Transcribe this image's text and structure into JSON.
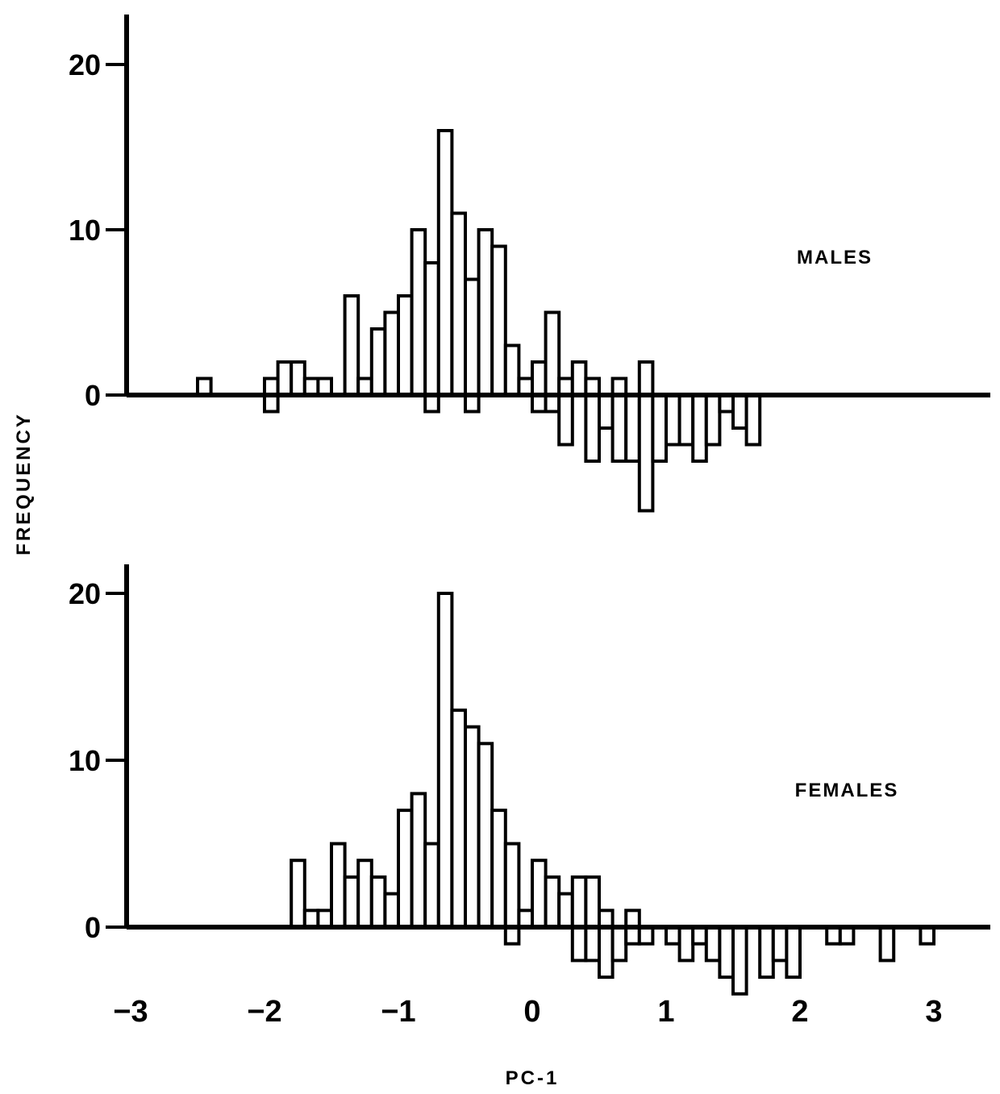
{
  "chart_data": {
    "type": "histogram",
    "ylabel": "FREQUENCY",
    "xlabel": "PC-1",
    "xlim": [
      -3,
      3.4
    ],
    "x_ticks": [
      "−3",
      "−2",
      "−1",
      "0",
      "1",
      "2",
      "3"
    ],
    "x_tick_values": [
      -3,
      -2,
      -1,
      0,
      1,
      2,
      3
    ],
    "bin_width": 0.1,
    "grid": false,
    "panels": [
      {
        "label": "MALES",
        "y_ticks": [
          "0",
          "10",
          "20"
        ],
        "y_tick_values": [
          0,
          10,
          20
        ],
        "ylim": [
          -7,
          23
        ],
        "above_bins": [
          {
            "x": -2.45,
            "codes": [
              "11"
            ]
          },
          {
            "x": -1.95,
            "codes": [
              "12"
            ]
          },
          {
            "x": -1.85,
            "codes": [
              "9",
              "13"
            ]
          },
          {
            "x": -1.75,
            "codes": [
              "9",
              "12"
            ]
          },
          {
            "x": -1.65,
            "codes": [
              "12"
            ]
          },
          {
            "x": -1.55,
            "codes": [
              "9"
            ]
          },
          {
            "x": -1.35,
            "codes": [
              "9",
              "9",
              "9",
              "9",
              "9",
              "9"
            ]
          },
          {
            "x": -1.25,
            "codes": [
              "12"
            ]
          },
          {
            "x": -1.15,
            "codes": [
              "12",
              "12",
              "12",
              "12"
            ]
          },
          {
            "x": -1.05,
            "codes": [
              "8",
              "9",
              "9",
              "9",
              "12"
            ]
          },
          {
            "x": -0.95,
            "codes": [
              "7",
              "9",
              "9",
              "9",
              "9",
              "13"
            ]
          },
          {
            "x": -0.85,
            "codes": [
              "7",
              "9",
              "9",
              "9",
              "9",
              "9",
              "10",
              "10",
              "11",
              "12"
            ]
          },
          {
            "x": -0.75,
            "codes": [
              "9",
              "9",
              "9",
              "9",
              "9",
              "9",
              "10",
              "12"
            ]
          },
          {
            "x": -0.65,
            "codes": [
              "7",
              "9",
              "9",
              "9",
              "9",
              "9",
              "9",
              "9",
              "9",
              "9",
              "9",
              "9",
              "9",
              "9",
              "9",
              "10"
            ]
          },
          {
            "x": -0.55,
            "codes": [
              "8",
              "9",
              "9",
              "9",
              "9",
              "9",
              "9",
              "12",
              "12",
              "12",
              "12"
            ]
          },
          {
            "x": -0.45,
            "codes": [
              "7",
              "7",
              "9",
              "9",
              "9",
              "9",
              "12"
            ]
          },
          {
            "x": -0.35,
            "codes": [
              "6",
              "8",
              "9",
              "9",
              "9",
              "9",
              "9",
              "9",
              "9",
              "13"
            ]
          },
          {
            "x": -0.25,
            "codes": [
              "8",
              "9",
              "9",
              "9",
              "9",
              "9",
              "9",
              "9",
              "9"
            ]
          },
          {
            "x": -0.15,
            "codes": [
              "9",
              "12",
              "12"
            ]
          },
          {
            "x": -0.05,
            "codes": [
              "9"
            ]
          },
          {
            "x": 0.05,
            "codes": [
              "9",
              "9"
            ]
          },
          {
            "x": 0.15,
            "codes": [
              "9",
              "9",
              "9",
              "9",
              "9"
            ]
          },
          {
            "x": 0.25,
            "codes": [
              "9"
            ]
          },
          {
            "x": 0.35,
            "codes": [
              "9",
              "11"
            ]
          },
          {
            "x": 0.45,
            "codes": [
              "9"
            ]
          },
          {
            "x": 0.65,
            "codes": [
              "9"
            ]
          },
          {
            "x": 0.85,
            "codes": [
              "9",
              "9"
            ]
          }
        ],
        "below_bins": [
          {
            "x": -1.95,
            "codes": [
              "4"
            ]
          },
          {
            "x": -0.75,
            "codes": [
              "4"
            ]
          },
          {
            "x": -0.45,
            "codes": [
              "3"
            ]
          },
          {
            "x": 0.05,
            "codes": [
              "1"
            ]
          },
          {
            "x": 0.15,
            "codes": [
              "2"
            ]
          },
          {
            "x": 0.25,
            "codes": [
              "3",
              "3",
              "3"
            ]
          },
          {
            "x": 0.45,
            "codes": [
              "2",
              "3",
              "3",
              "4"
            ]
          },
          {
            "x": 0.55,
            "codes": [
              "3",
              "5"
            ]
          },
          {
            "x": 0.65,
            "codes": [
              "3",
              "3",
              "3",
              "3"
            ]
          },
          {
            "x": 0.75,
            "codes": [
              "3",
              "3",
              "4",
              "5"
            ]
          },
          {
            "x": 0.85,
            "codes": [
              "1",
              "1",
              "3",
              "3",
              "3",
              "3",
              "3"
            ]
          },
          {
            "x": 0.95,
            "codes": [
              "2",
              "2",
              "3",
              "3"
            ]
          },
          {
            "x": 1.05,
            "codes": [
              "3",
              "3",
              "3"
            ]
          },
          {
            "x": 1.15,
            "codes": [
              "3",
              "3",
              "5"
            ]
          },
          {
            "x": 1.25,
            "codes": [
              "3",
              "3",
              "3",
              "3"
            ]
          },
          {
            "x": 1.35,
            "codes": [
              "3",
              "3",
              "3"
            ]
          },
          {
            "x": 1.45,
            "codes": [
              "3"
            ]
          },
          {
            "x": 1.55,
            "codes": [
              "3",
              "3"
            ]
          },
          {
            "x": 1.65,
            "codes": [
              "3",
              "3",
              "3"
            ]
          }
        ]
      },
      {
        "label": "FEMALES",
        "y_ticks": [
          "0",
          "10",
          "20"
        ],
        "y_tick_values": [
          0,
          10,
          20
        ],
        "ylim": [
          -5,
          22
        ],
        "above_bins": [
          {
            "x": -1.75,
            "codes": [
              "9",
              "9",
              "9",
              "13"
            ]
          },
          {
            "x": -1.65,
            "codes": [
              "9"
            ]
          },
          {
            "x": -1.55,
            "codes": [
              "13"
            ]
          },
          {
            "x": -1.45,
            "codes": [
              "7",
              "8",
              "9",
              "9",
              "9"
            ]
          },
          {
            "x": -1.35,
            "codes": [
              "9",
              "13",
              "9"
            ]
          },
          {
            "x": -1.25,
            "codes": [
              "9",
              "9",
              "9",
              "12"
            ]
          },
          {
            "x": -1.15,
            "codes": [
              "9",
              "12",
              "9"
            ]
          },
          {
            "x": -1.05,
            "codes": [
              "9",
              "12"
            ]
          },
          {
            "x": -0.95,
            "codes": [
              "9",
              "9",
              "9",
              "9",
              "9",
              "9",
              "12"
            ]
          },
          {
            "x": -0.85,
            "codes": [
              "9",
              "9",
              "9",
              "9",
              "9",
              "9",
              "9",
              "9"
            ]
          },
          {
            "x": -0.75,
            "codes": [
              "6",
              "9",
              "9",
              "9",
              "9"
            ]
          },
          {
            "x": -0.65,
            "codes": [
              "7",
              "9",
              "9",
              "9",
              "9",
              "9",
              "9",
              "9",
              "9",
              "9",
              "9",
              "9",
              "9",
              "9",
              "9",
              "9",
              "9",
              "10",
              "12",
              "12"
            ]
          },
          {
            "x": -0.55,
            "codes": [
              "9",
              "9",
              "9",
              "9",
              "9",
              "9",
              "9",
              "9",
              "9",
              "9",
              "9",
              "9",
              "9"
            ]
          },
          {
            "x": -0.45,
            "codes": [
              "8",
              "9",
              "9",
              "9",
              "9",
              "9",
              "9",
              "9",
              "9",
              "9",
              "9",
              "9"
            ]
          },
          {
            "x": -0.35,
            "codes": [
              "9",
              "9",
              "9",
              "9",
              "9",
              "9",
              "9",
              "9",
              "9",
              "9",
              "9"
            ]
          },
          {
            "x": -0.25,
            "codes": [
              "9",
              "9",
              "9",
              "9",
              "9",
              "9",
              "9"
            ]
          },
          {
            "x": -0.15,
            "codes": [
              "9",
              "9",
              "9",
              "9",
              "9"
            ]
          },
          {
            "x": -0.05,
            "codes": [
              "9"
            ]
          },
          {
            "x": 0.05,
            "codes": [
              "9",
              "9",
              "9",
              "9"
            ]
          },
          {
            "x": 0.15,
            "codes": [
              "9",
              "9",
              "9"
            ]
          },
          {
            "x": 0.25,
            "codes": [
              "9",
              "9"
            ]
          },
          {
            "x": 0.35,
            "codes": [
              "9",
              "9",
              "9"
            ]
          },
          {
            "x": 0.45,
            "codes": [
              "9",
              "9",
              "9"
            ]
          },
          {
            "x": 0.55,
            "codes": [
              "9"
            ]
          },
          {
            "x": 0.75,
            "codes": [
              "9"
            ]
          }
        ],
        "below_bins": [
          {
            "x": -0.15,
            "codes": [
              "3"
            ]
          },
          {
            "x": 0.35,
            "codes": [
              "3",
              "3"
            ]
          },
          {
            "x": 0.45,
            "codes": [
              "3",
              "3"
            ]
          },
          {
            "x": 0.55,
            "codes": [
              "1",
              "3",
              "5"
            ]
          },
          {
            "x": 0.65,
            "codes": [
              "3",
              "3"
            ]
          },
          {
            "x": 0.75,
            "codes": [
              "2"
            ]
          },
          {
            "x": 0.85,
            "codes": [
              "3"
            ]
          },
          {
            "x": 1.05,
            "codes": [
              "3"
            ]
          },
          {
            "x": 1.15,
            "codes": [
              "2",
              "5"
            ]
          },
          {
            "x": 1.25,
            "codes": [
              "3"
            ]
          },
          {
            "x": 1.35,
            "codes": [
              "3",
              "3"
            ]
          },
          {
            "x": 1.45,
            "codes": [
              "3",
              "3",
              "3"
            ]
          },
          {
            "x": 1.55,
            "codes": [
              "3",
              "3",
              "3",
              "3"
            ]
          },
          {
            "x": 1.75,
            "codes": [
              "2",
              "3",
              "2"
            ]
          },
          {
            "x": 1.85,
            "codes": [
              "3",
              "5"
            ]
          },
          {
            "x": 1.95,
            "codes": [
              "2",
              "3",
              "3"
            ]
          },
          {
            "x": 2.25,
            "codes": [
              "5"
            ]
          },
          {
            "x": 2.35,
            "codes": [
              "3"
            ]
          },
          {
            "x": 2.65,
            "codes": [
              "3",
              "3"
            ]
          },
          {
            "x": 2.95,
            "codes": [
              "3"
            ]
          }
        ]
      }
    ]
  }
}
